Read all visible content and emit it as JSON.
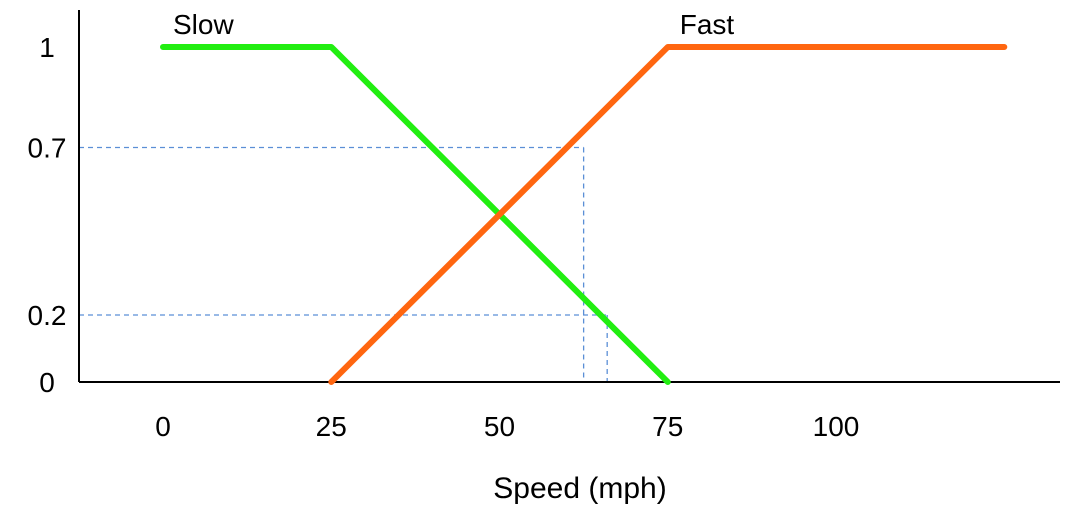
{
  "chart_data": {
    "type": "line",
    "xlabel": "Speed (mph)",
    "ylabel": "",
    "x_ticks": [
      0,
      25,
      50,
      75,
      100
    ],
    "y_ticks": [
      0,
      0.2,
      0.7,
      1
    ],
    "y_tick_labels": [
      "0",
      "0.2",
      "0.7",
      "1"
    ],
    "xlim": [
      0,
      125
    ],
    "ylim": [
      0,
      1
    ],
    "grid": false,
    "series": [
      {
        "name": "Slow",
        "color": "#22ee11",
        "x": [
          0,
          25,
          75
        ],
        "y": [
          1,
          1,
          0
        ]
      },
      {
        "name": "Fast",
        "color": "#ff6610",
        "x": [
          25,
          75,
          125
        ],
        "y": [
          0,
          1,
          1
        ]
      }
    ],
    "reference_lines": [
      {
        "y": 0.7,
        "x": 62.5
      },
      {
        "y": 0.2,
        "x": 66
      }
    ],
    "reference_color": "#5b8fd6"
  }
}
